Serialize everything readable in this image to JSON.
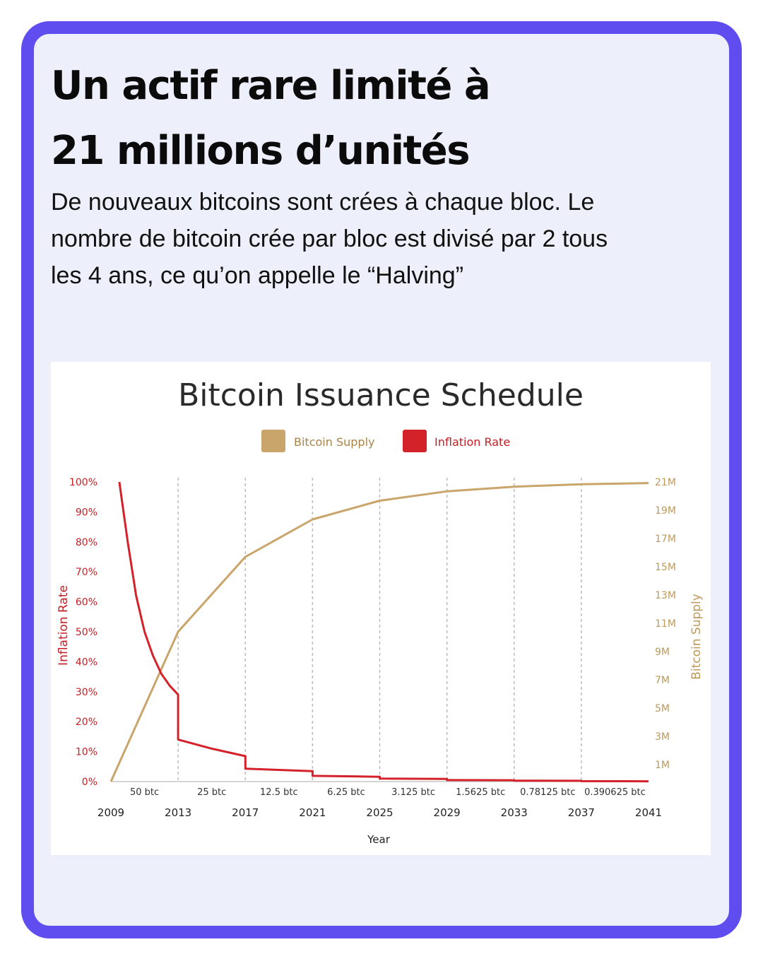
{
  "header": {
    "title_line1": "Un actif rare limité à",
    "title_line2": "21 millions d’unités",
    "subtitle_lines": [
      "De nouveaux bitcoins sont crées à chaque bloc. Le",
      "nombre de bitcoin crée par bloc est divisé par 2 tous",
      "les 4 ans, ce qu’on appelle le “Halving”"
    ]
  },
  "chart_data": {
    "type": "line",
    "title": "Bitcoin Issuance Schedule",
    "xlabel": "Year",
    "ylabel_left": "Inflation Rate",
    "ylabel_right": "Bitcoin Supply",
    "legend_placement": "top-center",
    "legend": [
      {
        "label": "Bitcoin Supply",
        "color": "#c9a56b"
      },
      {
        "label": "Inflation Rate",
        "color": "#d3222a"
      }
    ],
    "x_ticks": [
      "2009",
      "2013",
      "2017",
      "2021",
      "2025",
      "2029",
      "2033",
      "2037",
      "2041"
    ],
    "xlim": [
      2009,
      2041
    ],
    "ylim_left": [
      0,
      100
    ],
    "y_ticks_left": [
      "0%",
      "10%",
      "20%",
      "30%",
      "40%",
      "50%",
      "60%",
      "70%",
      "80%",
      "90%",
      "100%"
    ],
    "ylim_right": [
      0,
      21
    ],
    "y_ticks_right": [
      "1M",
      "3M",
      "5M",
      "7M",
      "9M",
      "11M",
      "13M",
      "15M",
      "17M",
      "19M",
      "21M"
    ],
    "y_ticks_right_values": [
      1,
      3,
      5,
      7,
      9,
      11,
      13,
      15,
      17,
      19,
      21
    ],
    "grid": "vertical dashed at halvings",
    "block_rewards": [
      "50 btc",
      "25 btc",
      "12.5 btc",
      "6.25 btc",
      "3.125 btc",
      "1.5625 btc",
      "0.78125 btc",
      "0.390625 btc"
    ],
    "series": [
      {
        "name": "Bitcoin Supply",
        "color": "#c9a56b",
        "unit": "M",
        "x": [
          2009,
          2013,
          2017,
          2021,
          2025,
          2029,
          2033,
          2037,
          2041
        ],
        "values": [
          0,
          10.5,
          15.75,
          18.375,
          19.6875,
          20.34,
          20.67,
          20.84,
          20.92
        ]
      },
      {
        "name": "Inflation Rate",
        "color": "#d3222a",
        "unit": "%",
        "x": [
          2009.5,
          2010,
          2010.5,
          2011,
          2011.5,
          2012,
          2012.5,
          2013,
          2013,
          2015,
          2017,
          2017,
          2021,
          2021,
          2025,
          2025,
          2029,
          2029,
          2033,
          2033,
          2037,
          2037,
          2041
        ],
        "values": [
          100,
          80,
          62,
          50,
          42,
          36,
          32,
          29,
          14,
          11,
          8.5,
          4.3,
          3.5,
          1.9,
          1.6,
          1.0,
          0.9,
          0.5,
          0.45,
          0.3,
          0.25,
          0.15,
          0.1
        ]
      }
    ]
  }
}
